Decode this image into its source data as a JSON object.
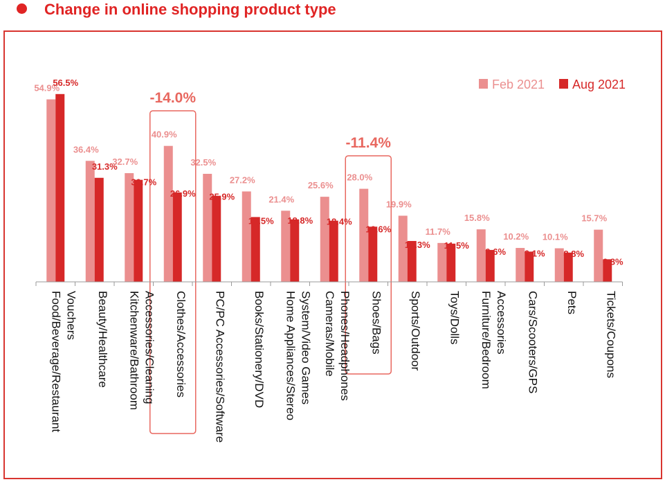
{
  "title": "Change in online shopping product type",
  "colors": {
    "title": "#e02424",
    "frame": "#d8342f",
    "feb": "#eb8f8f",
    "aug": "#d62828",
    "highlight_box": "#e8675f",
    "highlight_text": "#e8675f",
    "axis": "#999999"
  },
  "chart_data": {
    "type": "bar",
    "categories": [
      "Food/Beverage/Restaurant Vouchers",
      "Beauty/Healthcare",
      "Kitchenware/Bathroom Accessories/Cleaning",
      "Clothes/Accessories",
      "PC/PC Accessories/Software",
      "Books/Stationery/DVD",
      "Home Appliances/Stereo System/Video Games",
      "Cameras/Mobile Phones/Headphones",
      "Shoes/Bags",
      "Sports/Outdoor",
      "Toys/Dolls",
      "Furniture/Bedroom Accessories",
      "Cars/Scooters/GPS",
      "Pets",
      "Tickets/Coupons"
    ],
    "category_lines": [
      [
        "Food/Beverage/Restaurant",
        "Vouchers"
      ],
      [
        "Beauty/Healthcare"
      ],
      [
        "Kitchenware/Bathroom",
        "Accessories/Cleaning"
      ],
      [
        "Clothes/Accessories"
      ],
      [
        "PC/PC Accessories/Software"
      ],
      [
        "Books/Stationery/DVD"
      ],
      [
        "Home Appliances/Stereo",
        "System/Video Games"
      ],
      [
        "Cameras/Mobile",
        "Phones/Headphones"
      ],
      [
        "Shoes/Bags"
      ],
      [
        "Sports/Outdoor"
      ],
      [
        "Toys/Dolls"
      ],
      [
        "Furniture/Bedroom",
        "Accessories"
      ],
      [
        "Cars/Scooters/GPS"
      ],
      [
        "Pets"
      ],
      [
        "Tickets/Coupons"
      ]
    ],
    "series": [
      {
        "name": "Feb 2021",
        "values": [
          54.9,
          36.4,
          32.7,
          40.9,
          32.5,
          27.2,
          21.4,
          25.6,
          28.0,
          19.9,
          11.7,
          15.8,
          10.2,
          10.1,
          15.7
        ],
        "labels": [
          "54.9%",
          "36.4%",
          "32.7%",
          "40.9%",
          "32.5%",
          "27.2%",
          "21.4%",
          "25.6%",
          "28.0%",
          "19.9%",
          "11.7%",
          "15.8%",
          "10.2%",
          "10.1%",
          "15.7%"
        ]
      },
      {
        "name": "Aug 2021",
        "values": [
          56.5,
          31.3,
          30.7,
          26.9,
          25.9,
          19.5,
          18.8,
          18.4,
          16.6,
          12.3,
          11.5,
          9.6,
          9.1,
          8.8,
          6.8
        ],
        "labels": [
          "56.5%",
          "31.3%",
          "30.7%",
          "26.9%",
          "25.9%",
          "19.5%",
          "18.8%",
          "18.4%",
          "16.6%",
          "12.3%",
          "11.5%",
          "9.6%",
          "9.1%",
          "8.8%",
          "6.8%"
        ]
      }
    ],
    "annotations": [
      {
        "category_index": 3,
        "text": "-14.0%"
      },
      {
        "category_index": 8,
        "text": "-11.4%"
      }
    ],
    "ylim": [
      0,
      60
    ],
    "grid": false,
    "legend_position": "top-right",
    "xlabel": "",
    "ylabel": ""
  }
}
